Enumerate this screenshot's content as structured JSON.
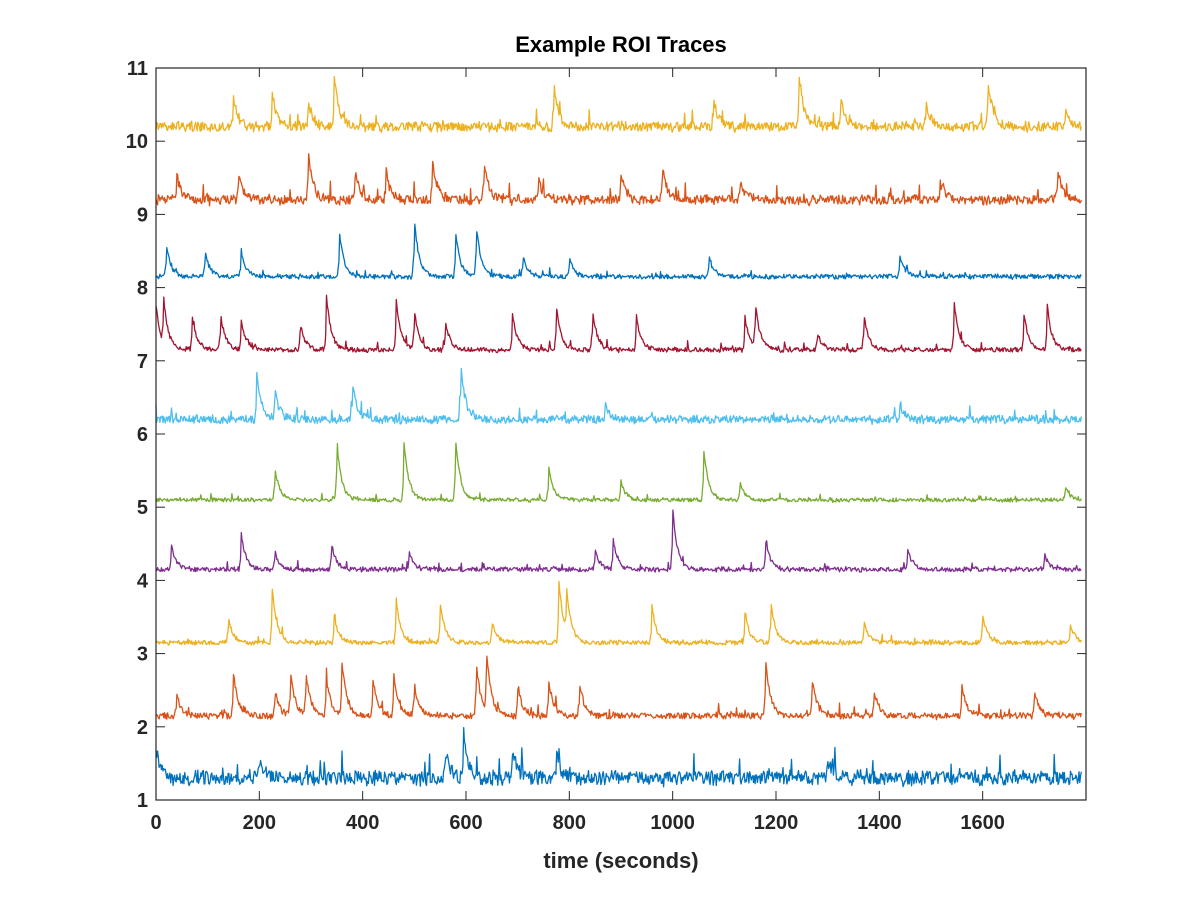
{
  "chart_data": {
    "type": "line",
    "title": "Example ROI Traces",
    "xlabel": "time (seconds)",
    "ylabel": "",
    "xlim": [
      0,
      1800
    ],
    "ylim": [
      1,
      11
    ],
    "xticks": [
      0,
      200,
      400,
      600,
      800,
      1000,
      1200,
      1400,
      1600
    ],
    "yticks": [
      1,
      2,
      3,
      4,
      5,
      6,
      7,
      8,
      9,
      10,
      11
    ],
    "grid": false,
    "legend": "none",
    "series": [
      {
        "baseline": 1.3,
        "noise": 0.09,
        "color": "#0072BD",
        "peaks": [
          [
            0,
            0.35
          ],
          [
            200,
            0.3
          ],
          [
            560,
            0.4
          ],
          [
            595,
            0.65
          ],
          [
            690,
            0.4
          ],
          [
            775,
            0.3
          ],
          [
            1300,
            0.3
          ]
        ]
      },
      {
        "baseline": 2.15,
        "noise": 0.04,
        "color": "#D95319",
        "peaks": [
          [
            40,
            0.3
          ],
          [
            150,
            0.6
          ],
          [
            230,
            0.35
          ],
          [
            260,
            0.6
          ],
          [
            290,
            0.6
          ],
          [
            330,
            0.5
          ],
          [
            360,
            0.75
          ],
          [
            420,
            0.5
          ],
          [
            460,
            0.55
          ],
          [
            500,
            0.45
          ],
          [
            620,
            0.75
          ],
          [
            640,
            0.8
          ],
          [
            700,
            0.4
          ],
          [
            760,
            0.5
          ],
          [
            820,
            0.45
          ],
          [
            1180,
            0.8
          ],
          [
            1270,
            0.5
          ],
          [
            1390,
            0.35
          ],
          [
            1560,
            0.4
          ],
          [
            1700,
            0.35
          ]
        ]
      },
      {
        "baseline": 3.15,
        "noise": 0.03,
        "color": "#EDB120",
        "peaks": [
          [
            140,
            0.35
          ],
          [
            225,
            0.75
          ],
          [
            345,
            0.35
          ],
          [
            465,
            0.6
          ],
          [
            550,
            0.55
          ],
          [
            650,
            0.3
          ],
          [
            780,
            0.85
          ],
          [
            795,
            0.55
          ],
          [
            960,
            0.5
          ],
          [
            1140,
            0.4
          ],
          [
            1190,
            0.55
          ],
          [
            1370,
            0.3
          ],
          [
            1600,
            0.4
          ],
          [
            1770,
            0.25
          ]
        ]
      },
      {
        "baseline": 4.15,
        "noise": 0.03,
        "color": "#7E2F8E",
        "peaks": [
          [
            30,
            0.35
          ],
          [
            165,
            0.5
          ],
          [
            230,
            0.25
          ],
          [
            340,
            0.35
          ],
          [
            490,
            0.25
          ],
          [
            850,
            0.25
          ],
          [
            885,
            0.4
          ],
          [
            1000,
            0.85
          ],
          [
            1180,
            0.4
          ],
          [
            1455,
            0.3
          ],
          [
            1720,
            0.2
          ]
        ]
      },
      {
        "baseline": 5.1,
        "noise": 0.025,
        "color": "#77AC30",
        "peaks": [
          [
            230,
            0.45
          ],
          [
            350,
            0.8
          ],
          [
            480,
            0.8
          ],
          [
            580,
            0.85
          ],
          [
            760,
            0.45
          ],
          [
            900,
            0.25
          ],
          [
            1060,
            0.7
          ],
          [
            1130,
            0.25
          ],
          [
            1760,
            0.2
          ]
        ]
      },
      {
        "baseline": 6.2,
        "noise": 0.05,
        "color": "#4DBEEE",
        "peaks": [
          [
            195,
            0.65
          ],
          [
            230,
            0.4
          ],
          [
            380,
            0.5
          ],
          [
            590,
            0.75
          ],
          [
            870,
            0.2
          ],
          [
            1440,
            0.2
          ]
        ]
      },
      {
        "baseline": 7.15,
        "noise": 0.03,
        "color": "#A2142F",
        "peaks": [
          [
            0,
            0.6
          ],
          [
            15,
            0.6
          ],
          [
            70,
            0.45
          ],
          [
            125,
            0.5
          ],
          [
            165,
            0.4
          ],
          [
            280,
            0.35
          ],
          [
            330,
            0.75
          ],
          [
            465,
            0.7
          ],
          [
            500,
            0.55
          ],
          [
            560,
            0.4
          ],
          [
            690,
            0.5
          ],
          [
            775,
            0.6
          ],
          [
            845,
            0.55
          ],
          [
            930,
            0.45
          ],
          [
            1140,
            0.45
          ],
          [
            1160,
            0.6
          ],
          [
            1280,
            0.25
          ],
          [
            1370,
            0.5
          ],
          [
            1545,
            0.65
          ],
          [
            1680,
            0.5
          ],
          [
            1725,
            0.6
          ]
        ]
      },
      {
        "baseline": 8.15,
        "noise": 0.03,
        "color": "#0072BD",
        "peaks": [
          [
            20,
            0.45
          ],
          [
            95,
            0.35
          ],
          [
            165,
            0.35
          ],
          [
            355,
            0.6
          ],
          [
            500,
            0.8
          ],
          [
            580,
            0.6
          ],
          [
            620,
            0.7
          ],
          [
            710,
            0.3
          ],
          [
            800,
            0.25
          ],
          [
            1070,
            0.3
          ],
          [
            1440,
            0.3
          ]
        ]
      },
      {
        "baseline": 9.2,
        "noise": 0.06,
        "color": "#D95319",
        "peaks": [
          [
            40,
            0.35
          ],
          [
            160,
            0.35
          ],
          [
            295,
            0.65
          ],
          [
            385,
            0.4
          ],
          [
            445,
            0.4
          ],
          [
            535,
            0.55
          ],
          [
            635,
            0.55
          ],
          [
            740,
            0.3
          ],
          [
            900,
            0.35
          ],
          [
            980,
            0.45
          ],
          [
            1130,
            0.3
          ],
          [
            1520,
            0.25
          ],
          [
            1745,
            0.45
          ]
        ]
      },
      {
        "baseline": 10.2,
        "noise": 0.06,
        "color": "#EDB120",
        "peaks": [
          [
            150,
            0.4
          ],
          [
            225,
            0.45
          ],
          [
            295,
            0.35
          ],
          [
            345,
            0.7
          ],
          [
            770,
            0.6
          ],
          [
            1080,
            0.35
          ],
          [
            1245,
            0.7
          ],
          [
            1325,
            0.4
          ],
          [
            1490,
            0.35
          ],
          [
            1610,
            0.65
          ],
          [
            1760,
            0.25
          ]
        ]
      }
    ]
  }
}
